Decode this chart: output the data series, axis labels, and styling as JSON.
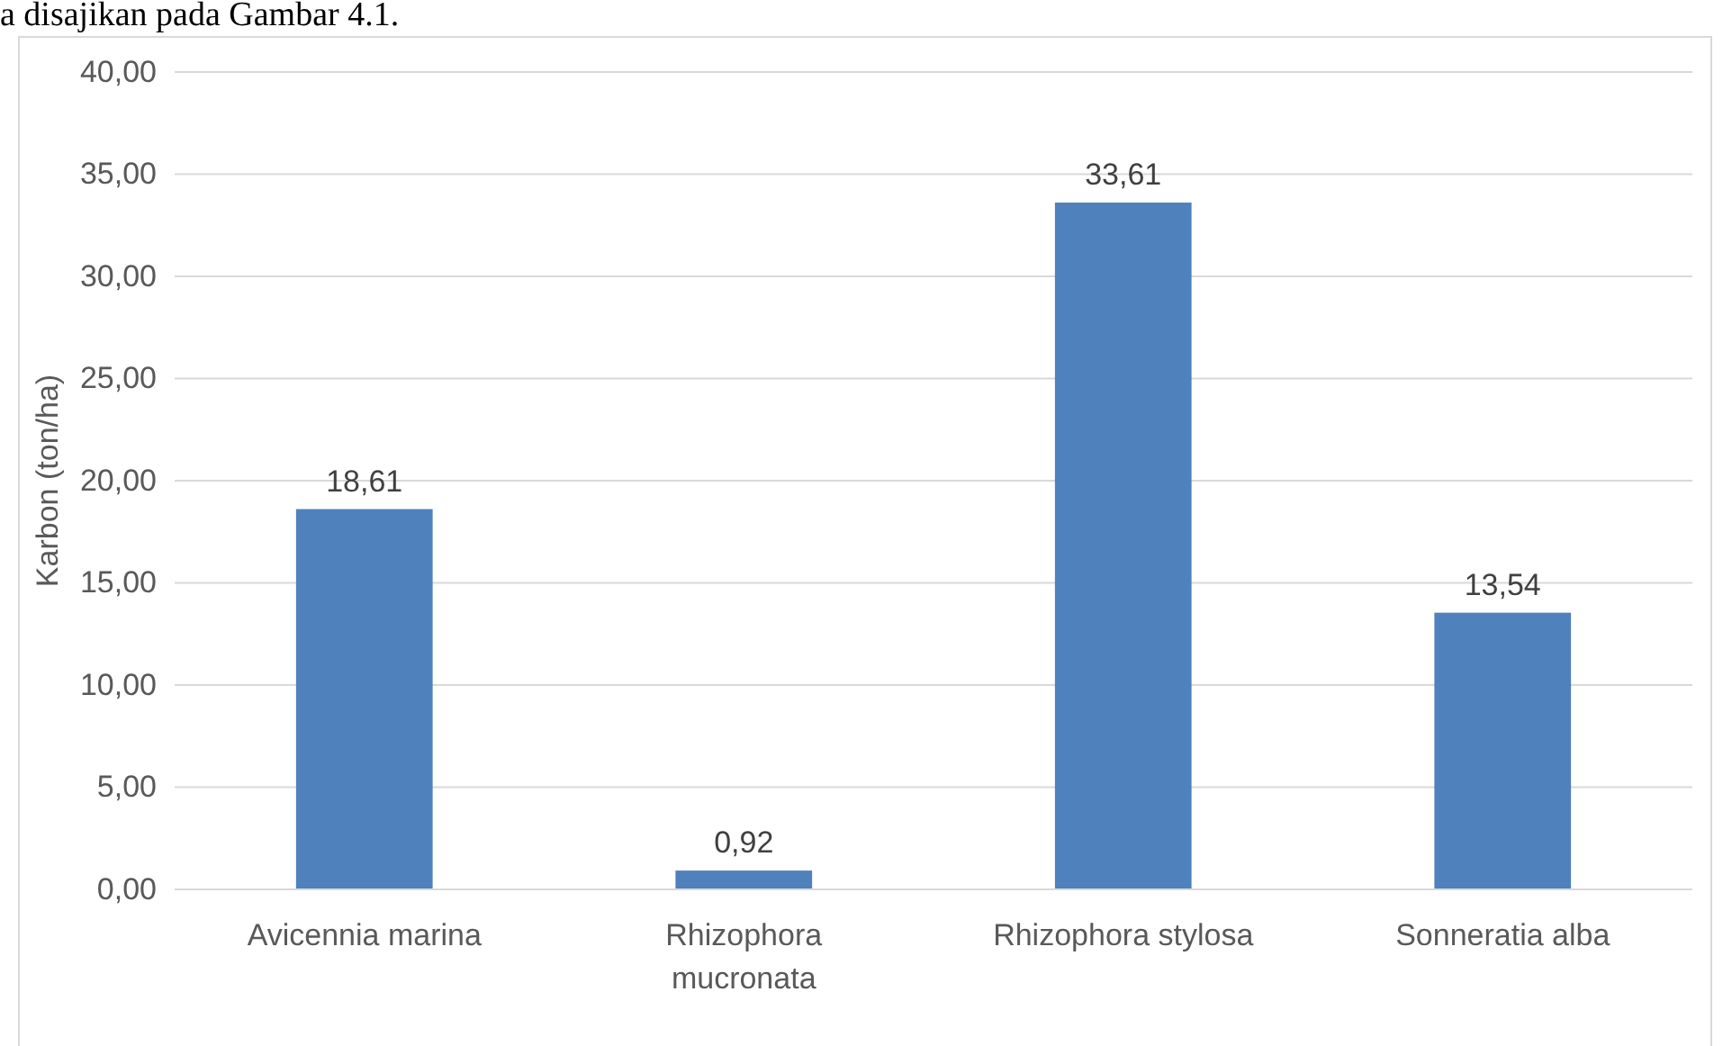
{
  "chart_data": {
    "type": "bar",
    "ylabel": "Karbon (ton/ha)",
    "annotations": [
      "a disajikan pada Gambar 4.1."
    ],
    "categories": [
      "Avicennia marina",
      "Rhizophora mucronata",
      "Rhizophora stylosa",
      "Sonneratia alba"
    ],
    "values": [
      18.61,
      0.92,
      33.61,
      13.54
    ],
    "value_labels": [
      "18,61",
      "0,92",
      "33,61",
      "13,54"
    ],
    "color": "#4f81bd",
    "ylim": [
      0,
      40
    ],
    "yticks": [
      {
        "value": 0,
        "label": "0,00"
      },
      {
        "value": 5,
        "label": "5,00"
      },
      {
        "value": 10,
        "label": "10,00"
      },
      {
        "value": 15,
        "label": "15,00"
      },
      {
        "value": 20,
        "label": "20,00"
      },
      {
        "value": 25,
        "label": "25,00"
      },
      {
        "value": 30,
        "label": "30,00"
      },
      {
        "value": 35,
        "label": "35,00"
      },
      {
        "value": 40,
        "label": "40,00"
      }
    ],
    "grid": "y"
  }
}
